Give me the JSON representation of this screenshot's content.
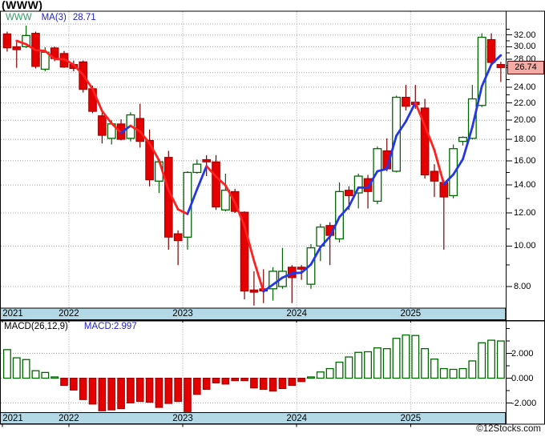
{
  "chart_data": {
    "type": "candlestick_with_macd_histogram",
    "title": "(WWW)",
    "ticker": "WWW",
    "legend": {
      "ticker": "WWW",
      "ma_label": "MA(3)",
      "ma_value": "28.71"
    },
    "last_price_label": "26.74",
    "watermark": "©12Stocks.com",
    "price_axis": {
      "scale": "log",
      "top": 36.4,
      "bottom": 7.1,
      "labeled_ticks": [
        32,
        30,
        28,
        24,
        22,
        20,
        18,
        16,
        14,
        12,
        10,
        8
      ],
      "grid_ticks": [
        34,
        32,
        30,
        28,
        26,
        24,
        22,
        20,
        18,
        16,
        14,
        12,
        10,
        8
      ],
      "minor_ticks": [
        33,
        31,
        29,
        27,
        25,
        23,
        21,
        19,
        17,
        15,
        13,
        11,
        9
      ],
      "boxed_value": 26.74
    },
    "x_axis": {
      "year_ticks": [
        {
          "label": "2021",
          "index": 0,
          "gridline": false
        },
        {
          "label": "2022",
          "index": 7,
          "gridline": true
        },
        {
          "label": "2023",
          "index": 19,
          "gridline": true
        },
        {
          "label": "2024",
          "index": 31,
          "gridline": true
        },
        {
          "label": "2025",
          "index": 43,
          "gridline": true
        }
      ]
    },
    "candles": [
      [
        32.2,
        32.6,
        29.2,
        29.8
      ],
      [
        30.0,
        30.8,
        26.7,
        29.5
      ],
      [
        30.0,
        33.7,
        29.8,
        31.9
      ],
      [
        32.3,
        32.6,
        26.6,
        26.9
      ],
      [
        26.5,
        29.9,
        26.2,
        29.1
      ],
      [
        29.8,
        30.0,
        27.7,
        28.1
      ],
      [
        28.9,
        29.3,
        26.7,
        26.8
      ],
      [
        27.2,
        27.8,
        26.2,
        26.6
      ],
      [
        27.6,
        27.8,
        23.3,
        23.7
      ],
      [
        23.8,
        24.2,
        20.8,
        21.0
      ],
      [
        20.5,
        21.0,
        17.6,
        18.4
      ],
      [
        18.1,
        20.0,
        17.5,
        19.6
      ],
      [
        19.6,
        20.1,
        17.9,
        18.0
      ],
      [
        18.1,
        20.9,
        17.8,
        20.6
      ],
      [
        20.2,
        21.9,
        17.2,
        17.8
      ],
      [
        17.9,
        19.0,
        13.9,
        14.4
      ],
      [
        14.3,
        16.1,
        13.4,
        15.9
      ],
      [
        16.3,
        16.9,
        9.8,
        10.5
      ],
      [
        10.7,
        10.9,
        9.0,
        10.3
      ],
      [
        10.5,
        15.1,
        9.8,
        15.0
      ],
      [
        15.0,
        16.1,
        14.9,
        15.7
      ],
      [
        16.1,
        16.5,
        14.7,
        15.9
      ],
      [
        15.9,
        16.5,
        12.2,
        12.4
      ],
      [
        12.2,
        14.9,
        12.1,
        13.6
      ],
      [
        13.5,
        13.7,
        12.0,
        12.1
      ],
      [
        12.05,
        12.1,
        7.45,
        7.8
      ],
      [
        7.85,
        8.7,
        7.2,
        7.75
      ],
      [
        7.9,
        8.8,
        7.3,
        7.8
      ],
      [
        7.9,
        8.9,
        7.4,
        8.7
      ],
      [
        8.0,
        9.9,
        7.9,
        8.7
      ],
      [
        8.9,
        9.0,
        7.3,
        8.4
      ],
      [
        8.9,
        9.0,
        8.3,
        8.8
      ],
      [
        8.1,
        10.1,
        7.9,
        9.9
      ],
      [
        10.0,
        11.3,
        9.2,
        11.1
      ],
      [
        11.2,
        11.4,
        9.0,
        10.6
      ],
      [
        10.4,
        14.2,
        10.2,
        13.5
      ],
      [
        13.6,
        13.9,
        12.2,
        13.2
      ],
      [
        13.4,
        14.9,
        12.3,
        14.7
      ],
      [
        14.5,
        14.8,
        12.3,
        13.5
      ],
      [
        12.8,
        17.3,
        12.6,
        17.1
      ],
      [
        16.9,
        18.1,
        15.1,
        15.3
      ],
      [
        15.1,
        22.9,
        15.0,
        22.7
      ],
      [
        22.7,
        24.3,
        21.1,
        21.6
      ],
      [
        22.1,
        24.3,
        21.3,
        21.8
      ],
      [
        21.4,
        22.5,
        14.5,
        14.8
      ],
      [
        15.1,
        15.7,
        13.1,
        14.3
      ],
      [
        14.2,
        14.4,
        9.8,
        13.1
      ],
      [
        13.2,
        17.5,
        13.0,
        17.1
      ],
      [
        17.8,
        18.3,
        17.4,
        18.2
      ],
      [
        18.1,
        24.3,
        18.0,
        22.5
      ],
      [
        21.7,
        32.3,
        21.5,
        31.6
      ],
      [
        31.2,
        32.3,
        27.1,
        27.5
      ],
      [
        27.2,
        27.6,
        24.7,
        26.74
      ]
    ],
    "ma": {
      "period": 3,
      "seed_start": 31.0,
      "final_value": 28.71
    },
    "macd": {
      "label": "MACD(26,12,9)",
      "value_label": "MACD:2.997",
      "axis_labels": [
        "2.000",
        "0.000",
        "-2.000"
      ],
      "axis_label_values": [
        2,
        0,
        -2
      ],
      "minor_ticks": [
        4,
        3,
        1,
        -1
      ],
      "values": [
        2.3,
        1.64,
        1.5,
        0.6,
        0.46,
        0.1,
        -0.59,
        -0.96,
        -1.73,
        -2.09,
        -2.63,
        -2.56,
        -2.46,
        -2.0,
        -1.88,
        -1.94,
        -2.36,
        -2.04,
        -1.88,
        -2.7,
        -1.31,
        -0.9,
        -0.38,
        -0.48,
        -0.21,
        -0.21,
        -0.79,
        -0.9,
        -1.04,
        -0.84,
        -0.59,
        -0.28,
        0.1,
        0.5,
        0.77,
        1.29,
        1.71,
        2.08,
        2.13,
        2.44,
        2.38,
        3.21,
        3.48,
        3.44,
        2.38,
        1.54,
        0.77,
        0.71,
        0.77,
        1.39,
        2.85,
        3.06,
        2.997
      ]
    },
    "colors": {
      "background": "#FFFFFF",
      "frame": "#000000",
      "grid": "#A3A3A3",
      "candle_up_border": "#006600",
      "candle_up_fill": "#FFFFFF",
      "candle_down_fill": "#E40000",
      "candle_down_border": "#990000",
      "candle_down_wick": "#7D0000",
      "ma_up": "#2336E8",
      "ma_down": "#FF2020",
      "legend_ticker": "#339966",
      "legend_blue": "#2222CC",
      "axis_bar_fill": "#B4D9E6",
      "price_box_bg": "#F5ABA5",
      "price_box_border": "#5A0000",
      "macd_up_border": "#006600",
      "macd_up_fill": "#FFFFFF",
      "macd_down_fill": "#E40000",
      "macd_down_border": "#990000"
    }
  }
}
